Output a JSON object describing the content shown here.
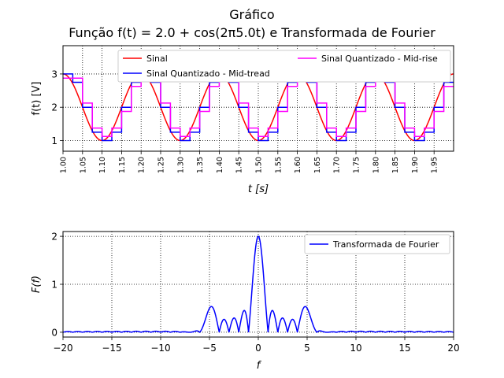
{
  "figure": {
    "suptitle": "Gráfico",
    "title": "Função f(t) = 2.0 + cos(2π5.0t) e Transformada de Fourier"
  },
  "chart_data": [
    {
      "type": "line",
      "title": "",
      "xlabel": "t [s]",
      "ylabel": "f(t) [V]",
      "xlim": [
        1.0,
        2.0
      ],
      "ylim": [
        0.68,
        3.85
      ],
      "grid": true,
      "xticks": [
        "1.00",
        "1.05",
        "1.10",
        "1.15",
        "1.20",
        "1.25",
        "1.30",
        "1.35",
        "1.40",
        "1.45",
        "1.50",
        "1.55",
        "1.60",
        "1.65",
        "1.70",
        "1.75",
        "1.80",
        "1.85",
        "1.90",
        "1.95"
      ],
      "yticks": [
        "1",
        "2",
        "3"
      ],
      "legend_position": "top",
      "series": [
        {
          "name": "Sinal",
          "color": "#ff0000",
          "formula": "2.0 + cos(2π·5.0·t)",
          "t_range": [
            1.0,
            2.0
          ]
        },
        {
          "name": "Sinal Quantizado - Mid-tread",
          "color": "#0000ff",
          "sample_interval": 0.025,
          "values": [
            3.0,
            2.75,
            2.0,
            1.25,
            1.0,
            1.25,
            2.0,
            2.75,
            3.0,
            2.75,
            2.0,
            1.25,
            1.0,
            1.25,
            2.0,
            2.75,
            3.0,
            2.75,
            2.0,
            1.25,
            1.0,
            1.25,
            2.0,
            2.75,
            3.0,
            2.75,
            2.0,
            1.25,
            1.0,
            1.25,
            2.0,
            2.75,
            3.0,
            2.75,
            2.0,
            1.25,
            1.0,
            1.25,
            2.0,
            2.75
          ]
        },
        {
          "name": "Sinal Quantizado - Mid-rise",
          "color": "#ff00ff",
          "sample_interval": 0.025,
          "values": [
            2.875,
            2.875,
            2.125,
            1.375,
            1.125,
            1.375,
            1.875,
            2.625,
            2.875,
            2.875,
            2.125,
            1.375,
            1.125,
            1.375,
            1.875,
            2.625,
            2.875,
            2.875,
            2.125,
            1.375,
            1.125,
            1.375,
            1.875,
            2.625,
            2.875,
            2.875,
            2.125,
            1.375,
            1.125,
            1.375,
            1.875,
            2.625,
            2.875,
            2.875,
            2.125,
            1.375,
            1.125,
            1.375,
            1.875,
            2.625
          ]
        }
      ]
    },
    {
      "type": "line",
      "title": "",
      "xlabel": "f",
      "ylabel": "F(f)",
      "xlim": [
        -20,
        20
      ],
      "ylim": [
        -0.1,
        2.1
      ],
      "grid": true,
      "xticks": [
        "−20",
        "−15",
        "−10",
        "−5",
        "0",
        "5",
        "10",
        "15",
        "20"
      ],
      "yticks": [
        "0",
        "1",
        "2"
      ],
      "legend_position": "top-right",
      "series": [
        {
          "name": "Transformada de Fourier",
          "color": "#0000ff",
          "formula": "|sinc(f) + 0.5·sinc(f−5) + 0.5·sinc(f+5)| (main lobe 2.0 at f=0, side lobes 0.55 at f=±5)"
        }
      ]
    }
  ]
}
